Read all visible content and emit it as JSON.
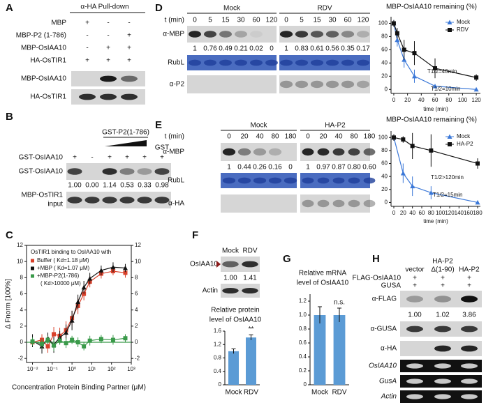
{
  "panels": {
    "A": {
      "label": "A",
      "header": "α-HA Pull-down",
      "rows": [
        {
          "name": "MBP",
          "signs": [
            "+",
            "-",
            "-"
          ]
        },
        {
          "name": "MBP-P2 (1-786)",
          "signs": [
            "-",
            "-",
            "+"
          ]
        },
        {
          "name": "MBP-OsIAA10",
          "signs": [
            "-",
            "+",
            "+"
          ]
        },
        {
          "name": "HA-OsTIR1",
          "signs": [
            "+",
            "+",
            "+"
          ]
        }
      ],
      "blots": [
        "MBP-OsIAA10",
        "HA-OsTIR1"
      ]
    },
    "B": {
      "label": "B",
      "header": "GST-P2(1-786)",
      "gst": "GST",
      "row": {
        "name": "GST-OsIAA10",
        "signs": [
          "+",
          "-",
          "+",
          "+",
          "+",
          "+"
        ]
      },
      "blots": [
        [
          "GST-OsIAA10"
        ],
        [
          "MBP-OsTIR1",
          "input"
        ]
      ],
      "quant": [
        "1.00",
        "0.00",
        "1.14",
        "0.53",
        "0.33",
        "0.98"
      ]
    },
    "C": {
      "label": "C"
    },
    "D": {
      "label": "D",
      "time_label": "t (min)",
      "groups": [
        {
          "name": "Mock",
          "times": [
            0,
            5,
            15,
            30,
            60,
            120
          ],
          "quant": [
            "1",
            "0.76",
            "0.49",
            "0.21",
            "0.02",
            "0"
          ]
        },
        {
          "name": "RDV",
          "times": [
            0,
            5,
            15,
            30,
            60,
            120
          ],
          "quant": [
            "1",
            "0.83",
            "0.61",
            "0.56",
            "0.35",
            "0.17"
          ]
        }
      ],
      "blots": [
        "α-MBP",
        "RubL",
        "α-P2"
      ]
    },
    "E": {
      "label": "E",
      "time_label": "t (min)",
      "groups": [
        {
          "name": "Mock",
          "times": [
            0,
            20,
            40,
            80,
            180
          ],
          "quant": [
            "1",
            "0.44",
            "0.26",
            "0.16",
            "0"
          ]
        },
        {
          "name": "HA-P2",
          "times": [
            0,
            20,
            40,
            80,
            180
          ],
          "quant": [
            "1",
            "0.97",
            "0.87",
            "0.80",
            "0.60"
          ]
        }
      ],
      "blots": [
        "α-MBP",
        "RubL",
        "α-HA"
      ]
    },
    "F": {
      "label": "F",
      "lanes": [
        "Mock",
        "RDV"
      ],
      "blots": [
        "OsIAA10",
        "Actin"
      ],
      "quant": [
        "1.00",
        "1.41"
      ]
    },
    "G": {
      "label": "G"
    },
    "H": {
      "label": "H",
      "lanes": [
        [
          "vector"
        ],
        [
          "HA-P2",
          "Δ(1-90)"
        ],
        [
          "HA-P2"
        ]
      ],
      "rows": [
        {
          "name": "FLAG-OsIAA10",
          "signs": [
            "+",
            "+",
            "+"
          ]
        },
        {
          "name": "GUSA",
          "signs": [
            "+",
            "+",
            "+"
          ]
        }
      ],
      "blots": [
        "α-FLAG",
        "α-GUSA",
        "α-HA",
        "OsIAA10",
        "GusA",
        "Actin"
      ],
      "quant": [
        "1.00",
        "1.02",
        "3.86"
      ]
    }
  },
  "chart_data": [
    {
      "type": "scatter",
      "ylabel": "Δ Fnorm [100%]",
      "xlabel": "Concentration Protein Binding Partner (μM)",
      "legend_title": "OsTIR1 binding to OsIAA10 with",
      "xscale": "log",
      "frame": true,
      "xlim": [
        0.005,
        1000
      ],
      "xticks": [
        {
          "value": 0.01,
          "label": "10⁻²"
        },
        {
          "value": 0.1,
          "label": "10⁻¹"
        },
        {
          "value": 1,
          "label": "10⁰"
        },
        {
          "value": 10,
          "label": "10¹"
        },
        {
          "value": 100,
          "label": "10²"
        },
        {
          "value": 1000,
          "label": "10³"
        }
      ],
      "ylim": [
        -2.5,
        12
      ],
      "yticks": [
        -2,
        0,
        2,
        4,
        6,
        8,
        10,
        12
      ],
      "y2lim": [
        -2.5,
        12
      ],
      "y2ticks": [
        -2,
        0,
        2,
        4,
        6,
        8,
        10,
        12
      ],
      "x": [
        0.01,
        0.03,
        0.06,
        0.12,
        0.24,
        0.5,
        1,
        2,
        4,
        8,
        30,
        120,
        500
      ],
      "series": [
        {
          "name": "Buffer ( Kd=1.18 μM)",
          "color": "#d9412b",
          "marker": "square",
          "values": [
            0,
            0.3,
            -0.5,
            1,
            0.8,
            1.5,
            3,
            4.5,
            6,
            7.5,
            8.5,
            8.8,
            8.6
          ],
          "errors": [
            0.6,
            0.7,
            0.8,
            0.9,
            1,
            1.1,
            0.9,
            1,
            0.8,
            0.7,
            0.6,
            0.5,
            0.6
          ]
        },
        {
          "name": "+MBP ( Kd=1.07 μM)",
          "color": "#111111",
          "marker": "triangle",
          "values": [
            0.2,
            -0.5,
            0.5,
            -0.3,
            0.6,
            1.2,
            2.7,
            5,
            6.8,
            7.9,
            8.9,
            9.3,
            9.2
          ],
          "errors": [
            0.8,
            0.9,
            0.7,
            1,
            0.8,
            1,
            1.2,
            0.9,
            0.8,
            0.7,
            0.6,
            0.6,
            0.5
          ]
        },
        {
          "name": "+MBP-P2(1-786)",
          "name_note": "( Kd>10000 μM)",
          "color": "#3a9a4a",
          "marker": "square",
          "values": [
            0.1,
            -0.2,
            0.3,
            -0.4,
            0.2,
            -0.1,
            0.3,
            0,
            -0.5,
            0.2,
            0.4,
            0.3,
            0.5
          ],
          "errors": [
            0.5,
            0.6,
            0.5,
            0.7,
            0.5,
            0.6,
            0.5,
            0.6,
            0.5,
            0.6,
            0.5,
            0.6,
            0.5
          ]
        }
      ]
    },
    {
      "type": "line",
      "title": "MBP-OsIAA10 remaining (%)",
      "xlabel": "time (min)",
      "xlim": [
        -4,
        126
      ],
      "xticks": [
        0,
        20,
        40,
        60,
        80,
        100,
        120
      ],
      "ylim": [
        -6,
        110
      ],
      "yticks": [
        0,
        20,
        40,
        60,
        80,
        100
      ],
      "annotations": [
        "T1/2=40min",
        "T1/2=10min"
      ],
      "x": [
        0,
        5,
        15,
        30,
        60,
        120
      ],
      "series": [
        {
          "name": "Mock",
          "color": "#3b78d8",
          "marker": "triangle",
          "values": [
            100,
            75,
            45,
            20,
            5,
            0
          ],
          "errors": [
            5,
            10,
            12,
            10,
            3,
            1
          ]
        },
        {
          "name": "RDV",
          "color": "#111111",
          "marker": "square",
          "values": [
            100,
            85,
            60,
            55,
            32,
            18
          ],
          "errors": [
            5,
            8,
            15,
            18,
            15,
            5
          ]
        }
      ]
    },
    {
      "type": "line",
      "title": "MBP-OsIAA10 remaining (%)",
      "xlabel": "time (min)",
      "xlim": [
        -6,
        186
      ],
      "xticks": [
        0,
        20,
        40,
        60,
        80,
        100,
        120,
        140,
        160,
        180
      ],
      "ylim": [
        -6,
        110
      ],
      "yticks": [
        0,
        20,
        40,
        60,
        80,
        100
      ],
      "annotations": [
        "T1/2>120min",
        "T1/2=15min"
      ],
      "x": [
        0,
        20,
        40,
        80,
        180
      ],
      "series": [
        {
          "name": "Mock",
          "color": "#3b78d8",
          "marker": "triangle",
          "values": [
            100,
            45,
            25,
            15,
            0
          ],
          "errors": [
            5,
            15,
            15,
            10,
            2
          ]
        },
        {
          "name": "HA-P2",
          "color": "#111111",
          "marker": "square",
          "values": [
            100,
            97,
            87,
            80,
            60
          ],
          "errors": [
            5,
            5,
            20,
            25,
            8
          ]
        }
      ]
    },
    {
      "type": "bar",
      "title": [
        "Relative protein",
        "level of OsIAA10"
      ],
      "significance": "**",
      "categories": [
        "Mock",
        "RDV"
      ],
      "values": [
        1,
        1.41
      ],
      "errors": [
        0.07,
        0.08
      ],
      "color": "#5b9bd5",
      "ylim": [
        0,
        1.6
      ],
      "yticks": [
        0,
        0.4,
        0.8,
        1.2,
        1.6
      ]
    },
    {
      "type": "bar",
      "title": [
        "Relative mRNA",
        "level of OsIAA10"
      ],
      "significance": "n.s.",
      "categories": [
        "Mock",
        "RDV"
      ],
      "values": [
        1,
        1
      ],
      "errors": [
        0.12,
        0.1
      ],
      "color": "#5b9bd5",
      "ylim": [
        0,
        1.3
      ],
      "yticks": [
        0,
        0.2,
        0.4,
        0.6,
        0.8,
        {
          "value": 1,
          "label": "1.0"
        },
        1.2
      ]
    }
  ]
}
